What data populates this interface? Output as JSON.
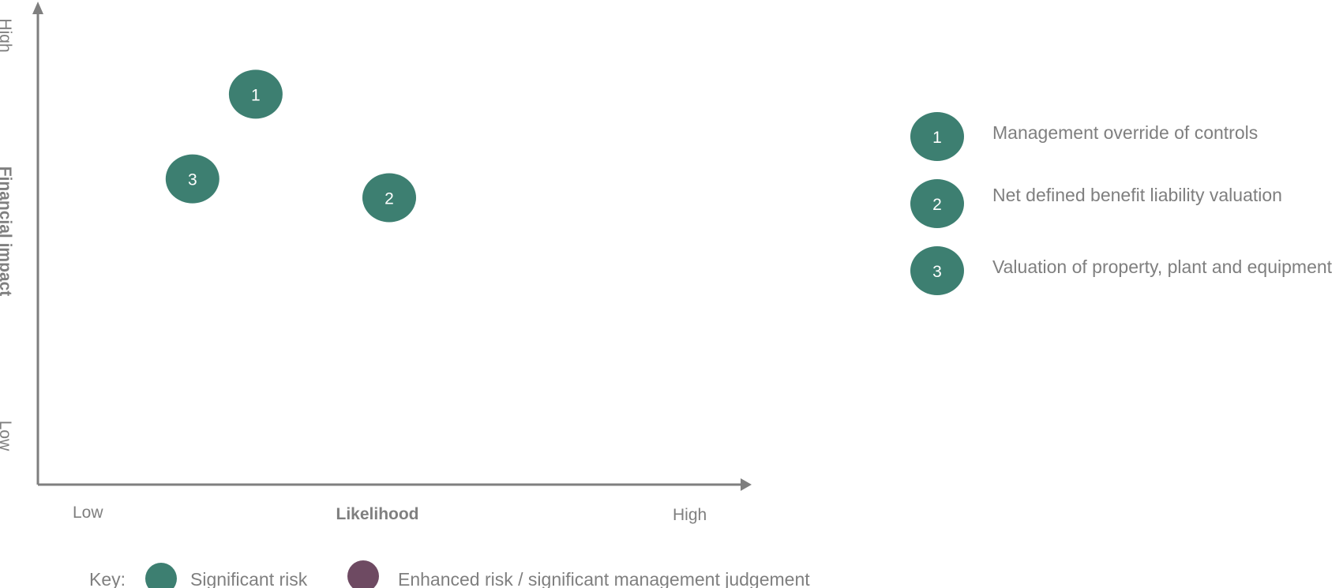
{
  "chart_data": {
    "type": "scatter",
    "title": "",
    "xlabel": "Likelihood",
    "ylabel": "Financial impact",
    "x_tick_labels": [
      "Low",
      "High"
    ],
    "y_tick_labels": [
      "Low",
      "High"
    ],
    "xlim": [
      0,
      100
    ],
    "ylim": [
      0,
      100
    ],
    "grid": false,
    "series": [
      {
        "name": "Significant risk",
        "color": "#3d7f71",
        "points": [
          {
            "id": "1",
            "label": "Management override of controls",
            "x": 31,
            "y": 83
          },
          {
            "id": "2",
            "label": "Net defined benefit liability valuation",
            "x": 50,
            "y": 61
          },
          {
            "id": "3",
            "label": "Valuation of property, plant and equipment",
            "x": 22,
            "y": 65
          }
        ]
      },
      {
        "name": "Enhanced risk / significant management judgement",
        "color": "#6e4a62",
        "points": []
      }
    ],
    "key_label": "Key:"
  },
  "colors": {
    "axis": "#7f7f7f",
    "significant_risk": "#3d7f71",
    "enhanced_risk": "#6e4a62",
    "text": "#7f7f7f"
  }
}
